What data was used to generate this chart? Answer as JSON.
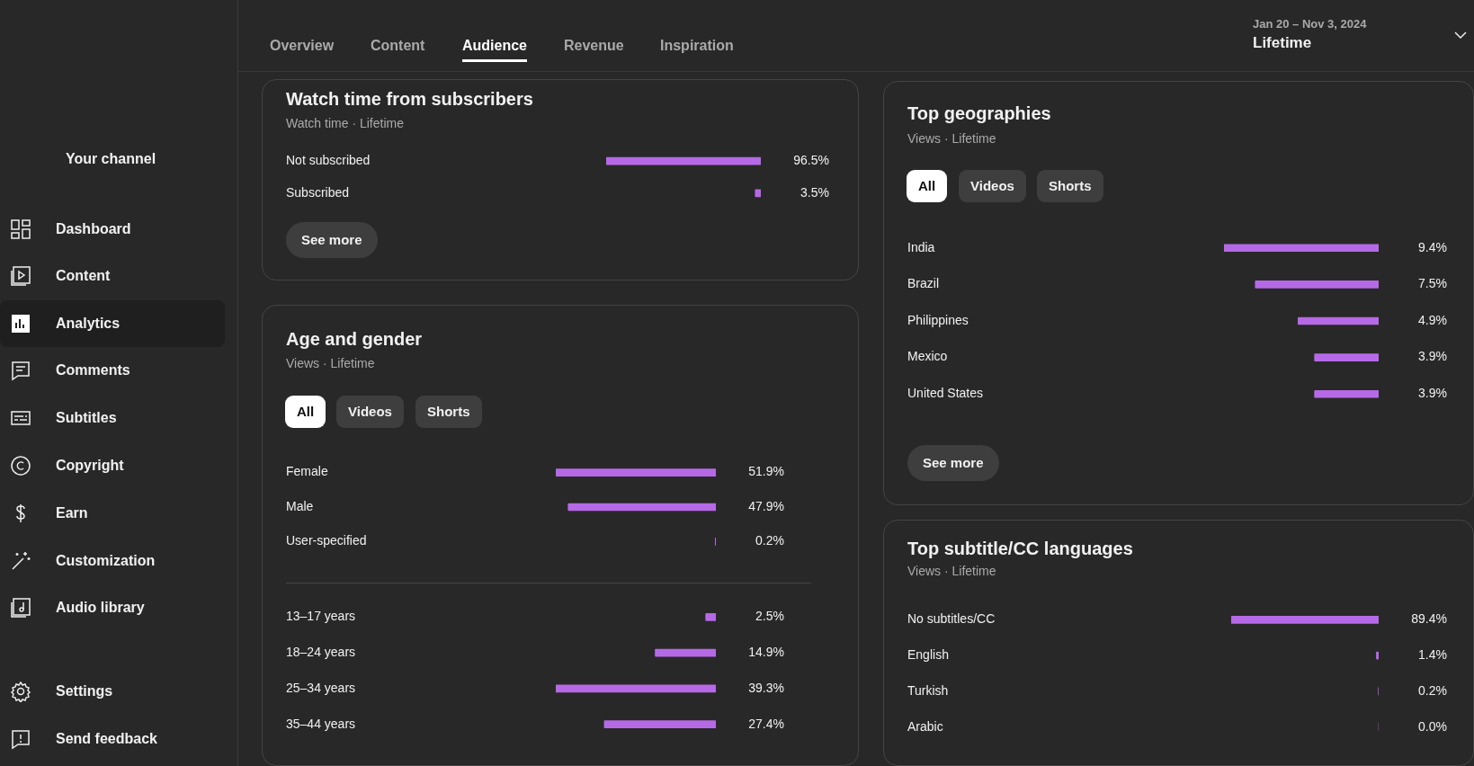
{
  "chart_data": [
    {
      "type": "bar",
      "orientation": "horizontal",
      "title": "Watch time from subscribers",
      "subtitle": "Watch time · Lifetime",
      "categories": [
        "Not subscribed",
        "Subscribed"
      ],
      "values": [
        96.5,
        3.5
      ],
      "value_labels": [
        "96.5%",
        "3.5%"
      ],
      "color": "#b669e6",
      "tick_labels": "y",
      "annotations": [
        "See more"
      ]
    },
    {
      "type": "bar",
      "orientation": "horizontal",
      "title": "Age and gender",
      "subtitle": "Views · Lifetime",
      "categories": [
        "Female",
        "Male",
        "User-specified"
      ],
      "values": [
        51.9,
        47.9,
        0.2
      ],
      "value_labels": [
        "51.9%",
        "47.9%",
        "0.2%"
      ],
      "color": "#b669e6",
      "tick_labels": "y",
      "annotations": [
        "All",
        "Videos",
        "Shorts"
      ]
    },
    {
      "type": "bar",
      "orientation": "horizontal",
      "categories": [
        "13–17 years",
        "18–24 years",
        "25–34 years",
        "35–44 years"
      ],
      "values": [
        2.5,
        14.9,
        39.3,
        27.4
      ],
      "value_labels": [
        "2.5%",
        "14.9%",
        "39.3%",
        "27.4%"
      ],
      "color": "#b669e6",
      "tick_labels": "y"
    },
    {
      "type": "bar",
      "orientation": "horizontal",
      "title": "Top geographies",
      "subtitle": "Views · Lifetime",
      "categories": [
        "India",
        "Brazil",
        "Philippines",
        "Mexico",
        "United States"
      ],
      "values": [
        9.4,
        7.5,
        4.9,
        3.9,
        3.9
      ],
      "value_labels": [
        "9.4%",
        "7.5%",
        "4.9%",
        "3.9%",
        "3.9%"
      ],
      "color": "#b669e6",
      "tick_labels": "y",
      "annotations": [
        "All",
        "Videos",
        "Shorts",
        "See more"
      ]
    },
    {
      "type": "bar",
      "orientation": "horizontal",
      "title": "Top subtitle/CC languages",
      "subtitle": "Views · Lifetime",
      "categories": [
        "No subtitles/CC",
        "English",
        "Turkish",
        "Arabic"
      ],
      "values": [
        89.4,
        1.4,
        0.2,
        0.0
      ],
      "value_labels": [
        "89.4%",
        "1.4%",
        "0.2%",
        "0.0%"
      ],
      "color": "#b669e6",
      "tick_labels": "y"
    },
    {
      "type": "other",
      "annotations": [
        "Your channel",
        "Dashboard",
        "Content",
        "Analytics",
        "Comments",
        "Subtitles",
        "Copyright",
        "Earn",
        "Customization",
        "Audio library",
        "Settings",
        "Send feedback"
      ]
    },
    {
      "type": "other",
      "annotations": [
        "Overview",
        "Content",
        "Audience",
        "Revenue",
        "Inspiration",
        "Jan 20 – Nov 3, 2024",
        "Lifetime"
      ]
    }
  ]
}
